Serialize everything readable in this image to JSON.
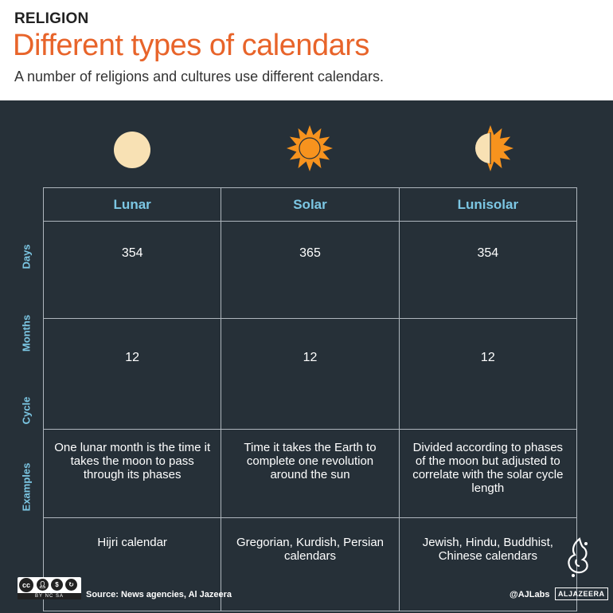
{
  "header": {
    "kicker": "RELIGION",
    "title": "Different types of calendars",
    "subtitle": "A number of religions and cultures use different calendars."
  },
  "icons": {
    "lunar": "full-moon-icon",
    "solar": "sun-icon",
    "lunisolar": "half-moon-half-sun-icon"
  },
  "colors": {
    "accent": "#e8642a",
    "panel": "#263038",
    "label": "#7cc7e4",
    "moon": "#f8e1b4",
    "sun": "#f7931e"
  },
  "table": {
    "columns": [
      "Lunar",
      "Solar",
      "Lunisolar"
    ],
    "rows": [
      {
        "label": "Days",
        "cells": [
          "354",
          "365",
          "354"
        ]
      },
      {
        "label": "Months",
        "cells": [
          "12",
          "12",
          "12"
        ]
      },
      {
        "label": "Cycle",
        "cells": [
          "One lunar month is the time it takes the moon to pass through its phases",
          "Time it takes the Earth to complete one revolution around the sun",
          "Divided according to phases of the moon but adjusted to correlate with the solar cycle length"
        ]
      },
      {
        "label": "Examples",
        "cells": [
          "Hijri calendar",
          "Gregorian, Kurdish, Persian calendars",
          "Jewish, Hindu, Buddhist, Chinese calendars"
        ]
      }
    ]
  },
  "footer": {
    "license_text": "BY NC SA",
    "source": "Source: News agencies, Al Jazeera",
    "handle": "@AJLabs",
    "brand": "ALJAZEERA"
  }
}
